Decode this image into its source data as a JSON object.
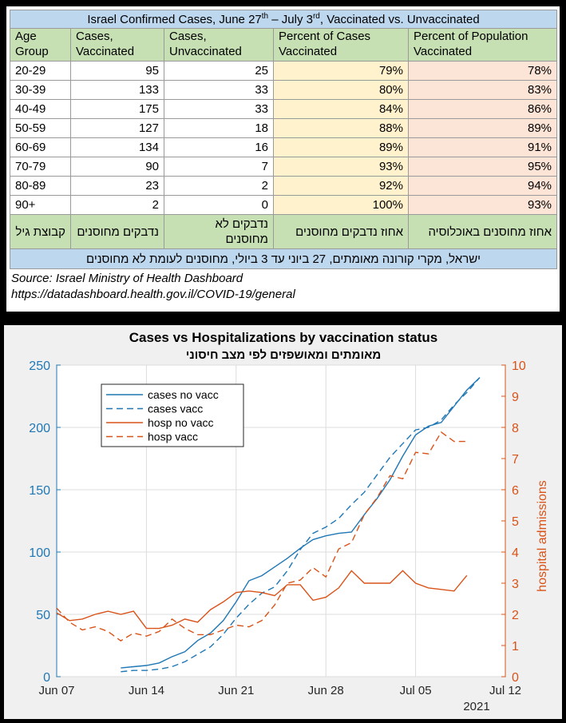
{
  "table": {
    "title_main": "Israel Confirmed Cases, June 27",
    "title_sup1": "th",
    "title_mid": " – July 3",
    "title_sup2": "rd",
    "title_end": ", Vaccinated vs. Unvaccinated",
    "headers": [
      "Age Group",
      "Cases, Vaccinated",
      "Cases, Unvaccinated",
      "Percent of Cases Vaccinated",
      "Percent of Population Vaccinated"
    ],
    "rows": [
      [
        "20-29",
        "95",
        "25",
        "79%",
        "78%"
      ],
      [
        "30-39",
        "133",
        "33",
        "80%",
        "83%"
      ],
      [
        "40-49",
        "175",
        "33",
        "84%",
        "86%"
      ],
      [
        "50-59",
        "127",
        "18",
        "88%",
        "89%"
      ],
      [
        "60-69",
        "134",
        "16",
        "89%",
        "91%"
      ],
      [
        "70-79",
        "90",
        "7",
        "93%",
        "95%"
      ],
      [
        "80-89",
        "23",
        "2",
        "92%",
        "94%"
      ],
      [
        "90+",
        "2",
        "0",
        "100%",
        "93%"
      ]
    ],
    "hebrew_headers": [
      "קבוצת גיל",
      "נדבקים מחוסנים",
      "נדבקים לא מחוסנים",
      "אחוז נדבקים מחוסנים",
      "אחוז מחוסנים באוכלוסיה"
    ],
    "hebrew_title": "ישראל, מקרי קורונה מאומתים, 27 ביוני עד 3 ביולי, מחוסנים לעומת לא מחוסנים",
    "source_line1": "Source: Israel Ministry of Health Dashboard",
    "source_line2": "https://datadashboard.health.gov.il/COVID-19/general"
  },
  "chart_data": {
    "type": "line",
    "title": "Cases vs Hospitalizations by vaccination status",
    "subtitle": "מאומתים ומאושפזים לפי מצב חיסוני",
    "ylabel_right": "hospital admissions",
    "year_label": "2021",
    "x_ticks": [
      "Jun 07",
      "Jun 14",
      "Jun 21",
      "Jun 28",
      "Jul 05",
      "Jul 12"
    ],
    "x_range_days": [
      0,
      35
    ],
    "ylim_left": [
      0,
      250
    ],
    "yticks_left": [
      0,
      50,
      100,
      150,
      200,
      250
    ],
    "ylim_right": [
      0,
      10
    ],
    "yticks_right": [
      0,
      1,
      2,
      3,
      4,
      5,
      6,
      7,
      8,
      9,
      10
    ],
    "grid": true,
    "legend_position": "top-left",
    "colors": {
      "cases": "#1f77b4",
      "hosp": "#d95319"
    },
    "series": [
      {
        "name": "cases no vacc",
        "axis": "left",
        "style": "solid",
        "x": [
          5,
          6,
          7,
          8,
          9,
          10,
          11,
          12,
          13,
          14,
          15,
          16,
          17,
          18,
          19,
          20,
          21,
          22,
          23,
          24,
          25,
          26,
          27,
          28,
          29,
          30,
          31,
          32,
          33
        ],
        "y": [
          7,
          8,
          9,
          11,
          16,
          20,
          29,
          35,
          45,
          60,
          77,
          81,
          88,
          95,
          103,
          110,
          113,
          115,
          116,
          130,
          143,
          158,
          177,
          194,
          201,
          204,
          217,
          230,
          240
        ]
      },
      {
        "name": "cases vacc",
        "axis": "left",
        "style": "dashed",
        "x": [
          5,
          6,
          7,
          8,
          9,
          10,
          11,
          12,
          13,
          14,
          15,
          16,
          17,
          18,
          19,
          20,
          21,
          22,
          23,
          24,
          25,
          26,
          27,
          28,
          29,
          30,
          31,
          32,
          33
        ],
        "y": [
          4,
          5,
          5,
          6,
          8,
          12,
          18,
          24,
          34,
          47,
          58,
          67,
          72,
          85,
          102,
          115,
          120,
          127,
          138,
          148,
          162,
          176,
          187,
          198,
          200,
          206,
          218,
          228,
          240
        ]
      },
      {
        "name": "hosp no vacc",
        "axis": "right",
        "style": "solid",
        "x": [
          0,
          1,
          2,
          3,
          4,
          5,
          6,
          7,
          8,
          9,
          10,
          11,
          12,
          13,
          14,
          15,
          16,
          17,
          18,
          19,
          20,
          21,
          22,
          23,
          24,
          25,
          26,
          27,
          28,
          29,
          30,
          31,
          32
        ],
        "y": [
          2.05,
          1.8,
          1.85,
          2.0,
          2.1,
          2.0,
          2.1,
          1.55,
          1.55,
          1.65,
          1.85,
          1.75,
          2.15,
          2.4,
          2.7,
          2.75,
          2.7,
          2.6,
          2.95,
          2.95,
          2.45,
          2.55,
          2.85,
          3.4,
          3.0,
          3.0,
          3.0,
          3.4,
          3.0,
          2.85,
          2.8,
          2.75,
          3.25
        ]
      },
      {
        "name": "hosp vacc",
        "axis": "right",
        "style": "dashed",
        "x": [
          0,
          1,
          2,
          3,
          4,
          5,
          6,
          7,
          8,
          9,
          10,
          11,
          12,
          13,
          14,
          15,
          16,
          17,
          18,
          19,
          20,
          21,
          22,
          23,
          24,
          25,
          26,
          27,
          28,
          29,
          30,
          31,
          32
        ],
        "y": [
          2.2,
          1.75,
          1.5,
          1.6,
          1.45,
          1.15,
          1.4,
          1.3,
          1.45,
          1.85,
          1.55,
          1.35,
          1.35,
          1.5,
          1.65,
          1.6,
          1.8,
          2.3,
          3.0,
          3.1,
          3.5,
          3.2,
          4.1,
          4.3,
          5.2,
          5.75,
          6.45,
          6.35,
          7.2,
          7.15,
          7.85,
          7.55,
          7.55
        ]
      }
    ]
  }
}
